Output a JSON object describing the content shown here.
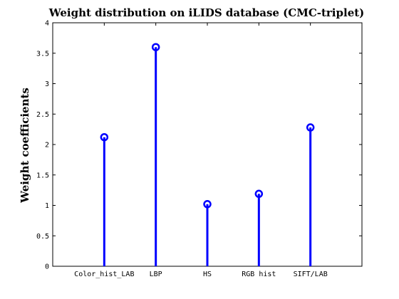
{
  "chart_data": {
    "type": "stem",
    "title": "Weight distribution on iLIDS database (CMC-triplet)",
    "xlabel": "",
    "ylabel": "Weight coefficients",
    "categories": [
      "Color_hist_LAB",
      "LBP",
      "HS",
      "RGB hist",
      "SIFT/LAB"
    ],
    "values": [
      2.12,
      3.6,
      1.02,
      1.19,
      2.28
    ],
    "ylim": [
      0,
      4
    ],
    "yticks": [
      0,
      0.5,
      1,
      1.5,
      2,
      2.5,
      3,
      3.5,
      4
    ],
    "ytick_labels": [
      "0",
      "0.5",
      "1",
      "1.5",
      "2",
      "2.5",
      "3",
      "3.5",
      "4"
    ],
    "xlim": [
      0,
      6
    ],
    "color": "#0000ff",
    "marker": "circle",
    "grid": false,
    "legend": false
  }
}
